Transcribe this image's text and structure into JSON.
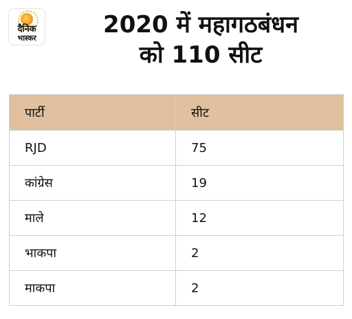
{
  "logo": {
    "line1": "दैनिक",
    "line2": "भास्कर"
  },
  "title": {
    "line1": "2020 में महागठबंधन",
    "line2": "को 110 सीट"
  },
  "table": {
    "headers": [
      "पार्टी",
      "सीट"
    ],
    "rows": [
      [
        "RJD",
        "75"
      ],
      [
        "कांग्रेस",
        "19"
      ],
      [
        "माले",
        "12"
      ],
      [
        "भाकपा",
        "2"
      ],
      [
        "माकपा",
        "2"
      ]
    ]
  },
  "colors": {
    "header_bg": "#e0c09f",
    "border": "#cfcfcf",
    "logo_accent": "#f6a01a"
  }
}
